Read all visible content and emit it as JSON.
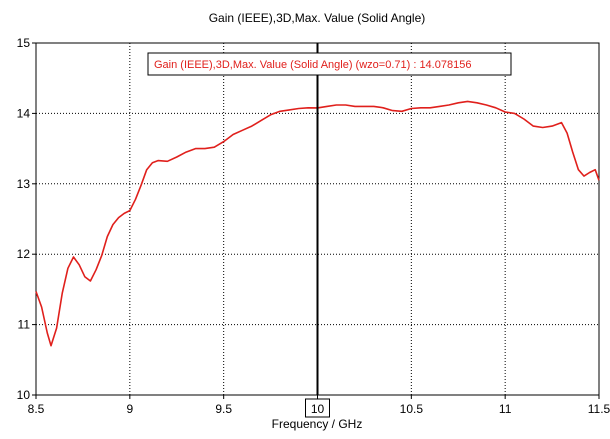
{
  "chart_data": {
    "type": "line",
    "title": "Gain (IEEE),3D,Max. Value (Solid Angle)",
    "xlabel": "Frequency / GHz",
    "ylabel": "",
    "xlim": [
      8.5,
      11.5
    ],
    "ylim": [
      10,
      15
    ],
    "x_ticks": [
      8.5,
      9,
      9.5,
      10,
      10.5,
      11,
      11.5
    ],
    "x_tick_labels": [
      "8.5",
      "9",
      "9.5",
      "10",
      "10.5",
      "11",
      "11.5"
    ],
    "y_ticks": [
      10,
      11,
      12,
      13,
      14,
      15
    ],
    "y_tick_labels": [
      "10",
      "11",
      "12",
      "13",
      "14",
      "15"
    ],
    "grid": true,
    "grid_style": "dotted",
    "line_color": "#e0201c",
    "marker": {
      "x": 10,
      "x_label": "10",
      "label": "Gain (IEEE),3D,Max. Value (Solid Angle) (wzo=0.71) : 14.078156",
      "value": 14.078156,
      "color": "#e0201c"
    },
    "series": [
      {
        "x": [
          8.5,
          8.53,
          8.56,
          8.58,
          8.61,
          8.64,
          8.67,
          8.7,
          8.73,
          8.76,
          8.79,
          8.82,
          8.85,
          8.88,
          8.91,
          8.94,
          8.97,
          9.0,
          9.03,
          9.06,
          9.09,
          9.12,
          9.15,
          9.2,
          9.25,
          9.3,
          9.35,
          9.4,
          9.45,
          9.5,
          9.55,
          9.6,
          9.65,
          9.7,
          9.75,
          9.8,
          9.85,
          9.9,
          9.95,
          10.0,
          10.05,
          10.1,
          10.15,
          10.2,
          10.25,
          10.3,
          10.35,
          10.4,
          10.45,
          10.5,
          10.55,
          10.6,
          10.65,
          10.7,
          10.75,
          10.8,
          10.85,
          10.9,
          10.95,
          11.0,
          11.05,
          11.1,
          11.15,
          11.2,
          11.25,
          11.3,
          11.33,
          11.36,
          11.39,
          11.42,
          11.45,
          11.48,
          11.5
        ],
        "values": [
          11.47,
          11.25,
          10.88,
          10.7,
          10.95,
          11.45,
          11.8,
          11.96,
          11.85,
          11.68,
          11.62,
          11.78,
          11.98,
          12.25,
          12.42,
          12.52,
          12.58,
          12.62,
          12.78,
          12.98,
          13.2,
          13.3,
          13.33,
          13.32,
          13.38,
          13.45,
          13.5,
          13.5,
          13.52,
          13.6,
          13.7,
          13.76,
          13.82,
          13.9,
          13.98,
          14.03,
          14.05,
          14.07,
          14.08,
          14.078,
          14.1,
          14.12,
          14.12,
          14.1,
          14.1,
          14.1,
          14.08,
          14.04,
          14.03,
          14.07,
          14.08,
          14.08,
          14.1,
          14.12,
          14.15,
          14.17,
          14.15,
          14.12,
          14.08,
          14.02,
          14.0,
          13.92,
          13.82,
          13.8,
          13.82,
          13.87,
          13.72,
          13.45,
          13.2,
          13.11,
          13.16,
          13.2,
          13.05
        ]
      }
    ]
  }
}
